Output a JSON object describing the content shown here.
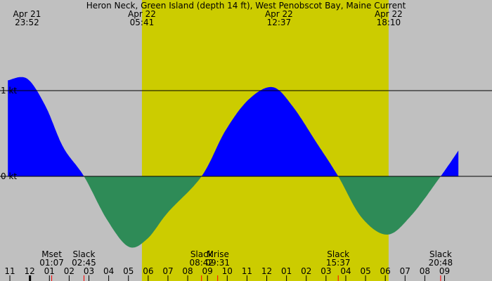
{
  "title": "Heron Neck, Green Island (depth 14 ft), West Penobscot Bay, Maine Current",
  "colors": {
    "night": "#c0c0c0",
    "day": "#cccc00",
    "flood": "#0000ff",
    "ebb": "#2e8b57",
    "line": "#000000",
    "tick_red": "#ff0000"
  },
  "chart_data": {
    "type": "area",
    "title": "Heron Neck, Green Island (depth 14 ft), West Penobscot Bay, Maine Current",
    "x_unit": "hours",
    "x_range": [
      -1.5,
      9.4
    ],
    "y_range": [
      -1.6,
      2.2
    ],
    "y_ticks": [
      {
        "value": 1,
        "label": "1 kt"
      },
      {
        "value": 0,
        "label": "0 kt"
      }
    ],
    "daylight": {
      "start_hour": 5.683,
      "end_hour": 18.167
    },
    "top_events": [
      {
        "hour": -0.133,
        "date": "Apr 21",
        "time": "23:52"
      },
      {
        "hour": 5.683,
        "date": "Apr 22",
        "time": "05:41"
      },
      {
        "hour": 12.617,
        "date": "Apr 22",
        "time": "12:37"
      },
      {
        "hour": 18.167,
        "date": "Apr 22",
        "time": "18:10"
      }
    ],
    "bottom_events": [
      {
        "hour": 1.117,
        "name": "Mset",
        "time": "01:07"
      },
      {
        "hour": 2.75,
        "name": "Slack",
        "time": "02:45"
      },
      {
        "hour": 8.7,
        "name": "Slack",
        "time": "08:42"
      },
      {
        "hour": 9.517,
        "name": "Mrise",
        "time": "09:31"
      },
      {
        "hour": 15.617,
        "name": "Slack",
        "time": "15:37"
      },
      {
        "hour": 20.8,
        "name": "Slack",
        "time": "20:48"
      }
    ],
    "hour_ticks": [
      "11",
      "12",
      "01",
      "02",
      "03",
      "04",
      "05",
      "06",
      "07",
      "08",
      "09",
      "10",
      "11",
      "12",
      "01",
      "02",
      "03",
      "04",
      "05",
      "06",
      "07",
      "08",
      "09"
    ],
    "current_points": [
      {
        "hour": -1.1,
        "value": 1.12
      },
      {
        "hour": -0.133,
        "value": 1.14
      },
      {
        "hour": 0.8,
        "value": 0.82
      },
      {
        "hour": 1.7,
        "value": 0.34
      },
      {
        "hour": 2.75,
        "value": 0.0
      },
      {
        "hour": 3.9,
        "value": -0.5
      },
      {
        "hour": 5.0,
        "value": -0.82
      },
      {
        "hour": 5.95,
        "value": -0.73
      },
      {
        "hour": 7.0,
        "value": -0.42
      },
      {
        "hour": 8.7,
        "value": 0.0
      },
      {
        "hour": 9.9,
        "value": 0.53
      },
      {
        "hour": 11.1,
        "value": 0.9
      },
      {
        "hour": 12.3,
        "value": 1.04
      },
      {
        "hour": 13.3,
        "value": 0.82
      },
      {
        "hour": 14.5,
        "value": 0.4
      },
      {
        "hour": 15.617,
        "value": 0.0
      },
      {
        "hour": 16.8,
        "value": -0.48
      },
      {
        "hour": 18.1,
        "value": -0.68
      },
      {
        "hour": 19.3,
        "value": -0.46
      },
      {
        "hour": 20.8,
        "value": 0.0
      },
      {
        "hour": 21.7,
        "value": 0.3
      }
    ]
  }
}
